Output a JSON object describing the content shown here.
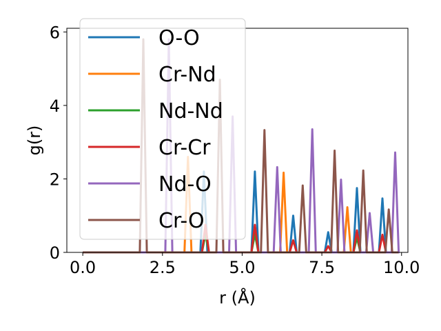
{
  "chart_data": {
    "type": "line",
    "title": "",
    "xlabel": "r (Å)",
    "ylabel": "g(r)",
    "xlim": [
      -0.5,
      10.2
    ],
    "ylim": [
      0,
      6.1
    ],
    "xticks": [
      0.0,
      2.5,
      5.0,
      7.5,
      10.0
    ],
    "xtick_labels": [
      "0.0",
      "2.5",
      "5.0",
      "7.5",
      "10.0"
    ],
    "yticks": [
      0,
      2,
      4,
      6
    ],
    "ytick_labels": [
      "0",
      "2",
      "4",
      "6"
    ],
    "grid": false,
    "legend_position": "top-left",
    "peak_width": 0.11,
    "series": [
      {
        "name": "O-O",
        "color": "#1f77b4",
        "peaks": [
          [
            3.8,
            2.2
          ],
          [
            5.4,
            2.2
          ],
          [
            6.6,
            1.0
          ],
          [
            7.7,
            0.55
          ],
          [
            8.6,
            1.75
          ],
          [
            9.4,
            1.47
          ]
        ]
      },
      {
        "name": "Cr-Nd",
        "color": "#ff7f0e",
        "peaks": [
          [
            3.3,
            2.6
          ],
          [
            6.3,
            2.17
          ],
          [
            8.3,
            1.23
          ]
        ]
      },
      {
        "name": "Nd-Nd",
        "color": "#2ca02c",
        "peaks": [
          [
            3.85,
            0.5
          ],
          [
            5.4,
            0.5
          ],
          [
            8.6,
            0.4
          ]
        ]
      },
      {
        "name": "Cr-Cr",
        "color": "#d62728",
        "peaks": [
          [
            3.85,
            0.75
          ],
          [
            5.4,
            0.75
          ],
          [
            6.6,
            0.33
          ],
          [
            7.7,
            0.17
          ],
          [
            8.6,
            0.6
          ],
          [
            9.4,
            0.48
          ]
        ]
      },
      {
        "name": "Nd-O",
        "color": "#9467bd",
        "peaks": [
          [
            2.7,
            5.8
          ],
          [
            4.7,
            3.7
          ],
          [
            6.1,
            2.32
          ],
          [
            7.2,
            3.35
          ],
          [
            8.1,
            1.98
          ],
          [
            9.0,
            1.07
          ],
          [
            9.8,
            2.72
          ]
        ]
      },
      {
        "name": "Cr-O",
        "color": "#8c564b",
        "peaks": [
          [
            1.9,
            5.8
          ],
          [
            4.3,
            4.7
          ],
          [
            5.7,
            3.33
          ],
          [
            6.9,
            1.82
          ],
          [
            7.9,
            2.77
          ],
          [
            8.8,
            2.23
          ],
          [
            9.6,
            1.17
          ]
        ]
      }
    ]
  }
}
